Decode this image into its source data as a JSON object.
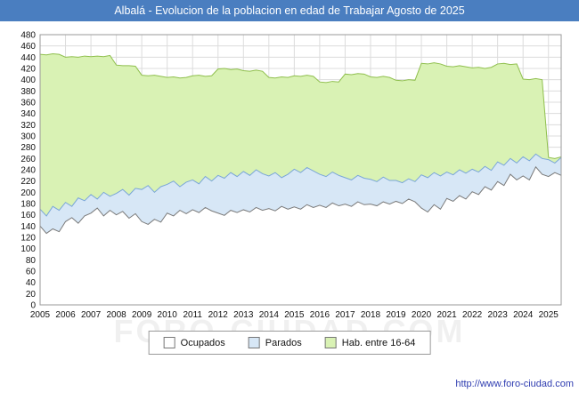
{
  "title": "Albalá - Evolucion de la poblacion en edad de Trabajar Agosto de 2025",
  "watermark": "FORO-CIUDAD.COM",
  "footer": {
    "url": "http://www.foro-ciudad.com"
  },
  "colors": {
    "titlebar": "#4a7ec0",
    "grid": "#dcdcdc",
    "plot_border": "#9a9a9a",
    "hab_fill": "#d9f2b4",
    "hab_line": "#8fbf4d",
    "parados_fill": "#d7e7f6",
    "parados_line": "#7aa6d8",
    "ocupados_fill": "#ffffff",
    "ocupados_line": "#7a7a7a"
  },
  "legend": {
    "items": [
      {
        "label": "Ocupados",
        "fill": "#ffffff"
      },
      {
        "label": "Parados",
        "fill": "#d7e7f6"
      },
      {
        "label": "Hab. entre 16-64",
        "fill": "#d9f2b4"
      }
    ]
  },
  "chart_data": {
    "type": "area",
    "title": "Albalá - Evolucion de la poblacion en edad de Trabajar Agosto de 2025",
    "xlabel": "",
    "ylabel": "",
    "ylim": [
      0,
      480
    ],
    "y_tick_step": 20,
    "x_start": 2005,
    "points_per_year": 4,
    "x_ticks": [
      2005,
      2006,
      2007,
      2008,
      2009,
      2010,
      2011,
      2012,
      2013,
      2014,
      2015,
      2016,
      2017,
      2018,
      2019,
      2020,
      2021,
      2022,
      2023,
      2024,
      2025
    ],
    "legend_position": "bottom",
    "grid": true,
    "series": [
      {
        "id": "hab",
        "name": "Hab. entre 16-64",
        "fill": "#d9f2b4",
        "color": "#8fbf4d",
        "values": [
          445,
          444,
          446,
          445,
          440,
          441,
          440,
          442,
          441,
          442,
          441,
          443,
          426,
          425,
          425,
          424,
          408,
          407,
          408,
          406,
          404,
          405,
          403,
          404,
          407,
          408,
          406,
          407,
          419,
          420,
          418,
          419,
          416,
          415,
          417,
          415,
          404,
          403,
          405,
          404,
          407,
          406,
          408,
          406,
          396,
          395,
          397,
          396,
          410,
          409,
          411,
          410,
          405,
          404,
          406,
          404,
          399,
          398,
          400,
          399,
          429,
          428,
          430,
          428,
          424,
          423,
          425,
          423,
          421,
          422,
          420,
          422,
          428,
          429,
          427,
          428,
          401,
          400,
          402,
          400,
          262,
          260,
          263
        ]
      },
      {
        "id": "parados",
        "name": "Parados",
        "fill": "#d7e7f6",
        "color": "#7aa6d8",
        "values": [
          170,
          158,
          175,
          168,
          182,
          175,
          190,
          185,
          196,
          188,
          200,
          193,
          198,
          205,
          195,
          207,
          205,
          212,
          200,
          210,
          214,
          220,
          210,
          218,
          222,
          215,
          228,
          220,
          230,
          225,
          235,
          228,
          237,
          230,
          240,
          233,
          229,
          235,
          226,
          232,
          241,
          235,
          244,
          238,
          232,
          228,
          236,
          230,
          226,
          222,
          230,
          225,
          223,
          219,
          227,
          221,
          221,
          217,
          224,
          219,
          231,
          226,
          235,
          229,
          236,
          231,
          240,
          234,
          241,
          236,
          246,
          239,
          254,
          248,
          260,
          252,
          263,
          256,
          268,
          260,
          258,
          252,
          262
        ]
      },
      {
        "id": "ocupados",
        "name": "Ocupados",
        "fill": "#ffffff",
        "color": "#7a7a7a",
        "values": [
          140,
          127,
          135,
          130,
          148,
          155,
          145,
          158,
          163,
          172,
          158,
          168,
          160,
          166,
          154,
          162,
          148,
          143,
          152,
          147,
          163,
          158,
          168,
          162,
          169,
          164,
          173,
          167,
          163,
          159,
          168,
          164,
          169,
          165,
          173,
          168,
          171,
          167,
          175,
          170,
          174,
          170,
          178,
          173,
          177,
          173,
          181,
          176,
          179,
          175,
          183,
          178,
          179,
          176,
          183,
          179,
          184,
          180,
          188,
          183,
          172,
          165,
          178,
          170,
          189,
          184,
          194,
          188,
          201,
          196,
          210,
          204,
          219,
          212,
          232,
          222,
          229,
          222,
          245,
          232,
          228,
          235,
          230
        ]
      }
    ]
  }
}
